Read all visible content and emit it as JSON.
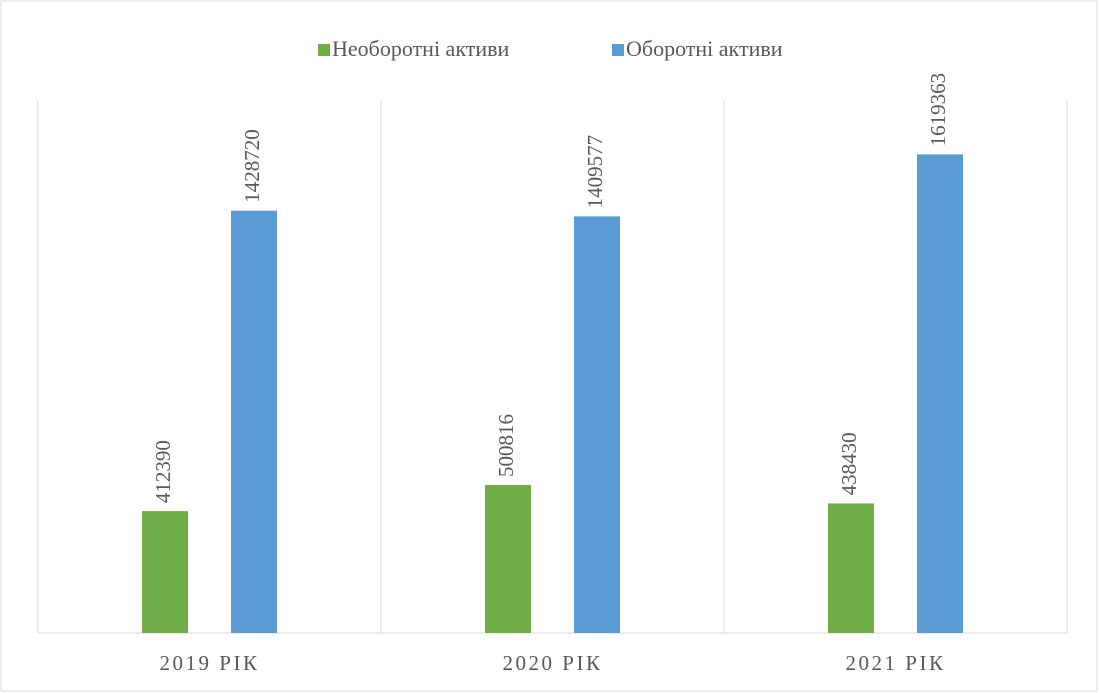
{
  "chart_data": {
    "type": "bar",
    "categories": [
      "2019 РІК",
      "2020 РІК",
      "2021 РІК"
    ],
    "series": [
      {
        "name": "Необоротні активи",
        "color": "#70ad47",
        "values": [
          412390,
          500816,
          438430
        ]
      },
      {
        "name": "Оборотні активи",
        "color": "#5b9bd5",
        "values": [
          1428720,
          1409577,
          1619363
        ]
      }
    ],
    "ylim": [
      0,
      1800000
    ],
    "legend": "top"
  }
}
